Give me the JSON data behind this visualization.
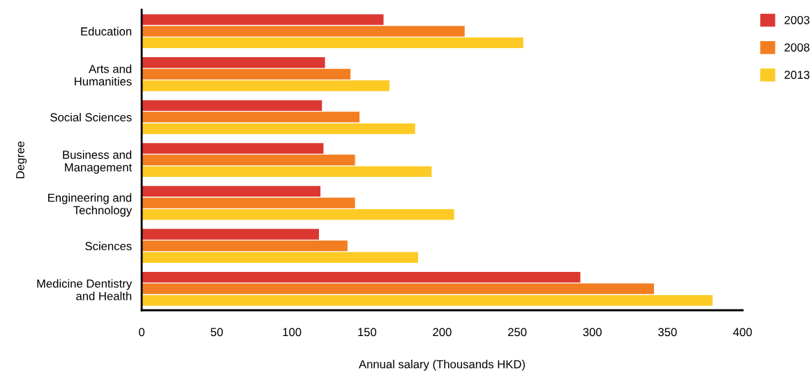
{
  "chart_data": {
    "type": "bar",
    "orientation": "horizontal",
    "xlabel": "Annual salary (Thousands HKD)",
    "ylabel": "Degree",
    "categories": [
      "Education",
      "Arts and\nHumanities",
      "Social Sciences",
      "Business and\nManagement",
      "Engineering and\nTechnology",
      "Sciences",
      "Medicine Dentistry\nand Health"
    ],
    "series": [
      {
        "name": "2003",
        "color": "#dc3832",
        "values": [
          161,
          122,
          120,
          121,
          119,
          118,
          292
        ]
      },
      {
        "name": "2008",
        "color": "#f37e22",
        "values": [
          215,
          139,
          145,
          142,
          142,
          137,
          341
        ]
      },
      {
        "name": "2013",
        "color": "#fdca25",
        "values": [
          254,
          165,
          182,
          193,
          208,
          184,
          380
        ]
      }
    ],
    "xlim": [
      0,
      400
    ],
    "xticks": [
      0,
      50,
      100,
      150,
      200,
      250,
      300,
      350,
      400
    ],
    "grid": false,
    "legend": "top right"
  }
}
